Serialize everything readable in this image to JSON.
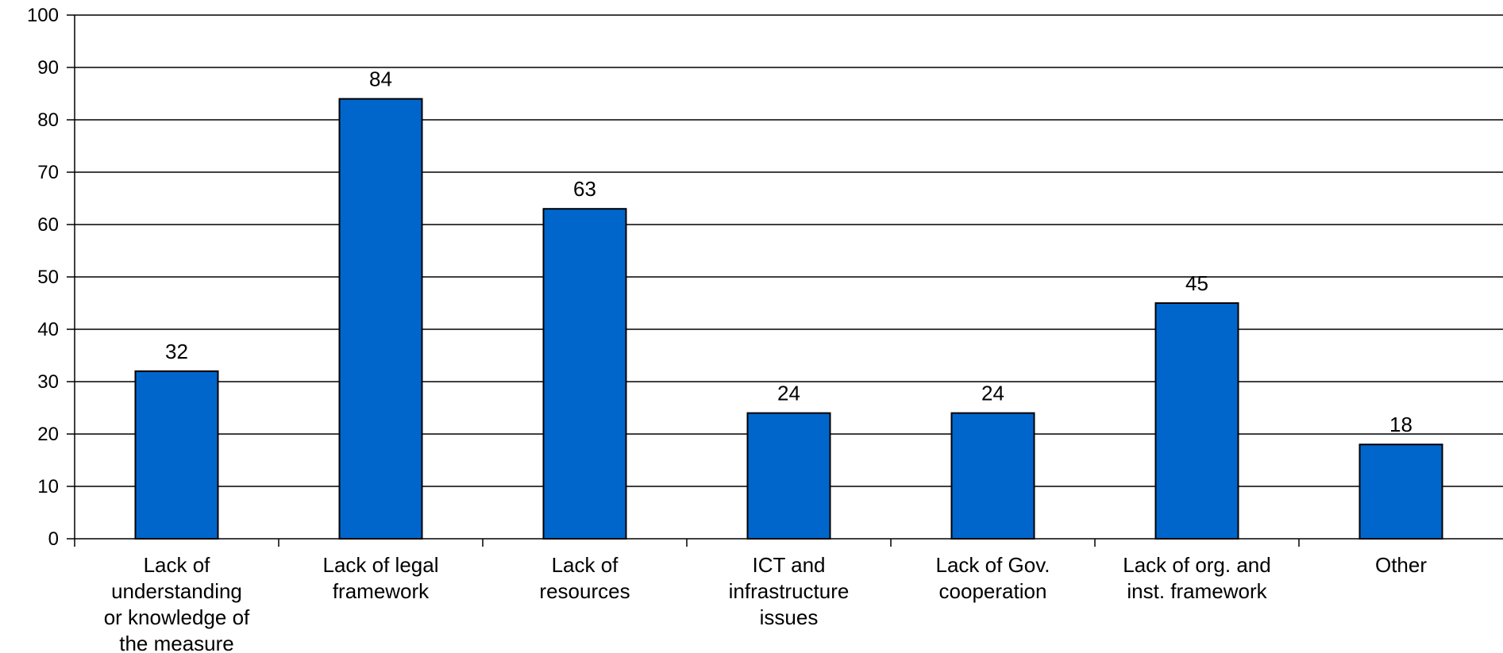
{
  "chart_data": {
    "type": "bar",
    "categories": [
      [
        "Lack of",
        "understanding",
        "or knowledge of",
        "the measure"
      ],
      [
        "Lack of legal",
        "framework"
      ],
      [
        "Lack of",
        "resources"
      ],
      [
        "ICT and",
        "infrastructure",
        "issues"
      ],
      [
        "Lack of Gov.",
        "cooperation"
      ],
      [
        "Lack of org. and",
        "inst. framework"
      ],
      [
        "Other"
      ]
    ],
    "values": [
      32,
      84,
      63,
      24,
      24,
      45,
      18
    ],
    "data_labels": [
      "32",
      "84",
      "63",
      "24",
      "24",
      "45",
      "18"
    ],
    "ylim": [
      0,
      100
    ],
    "yticks": [
      0,
      10,
      20,
      30,
      40,
      50,
      60,
      70,
      80,
      90,
      100
    ],
    "grid": true,
    "legend": "none",
    "bar_color": "#0066CC",
    "bar_edge_color": "#000000",
    "title": "",
    "xlabel": "",
    "ylabel": ""
  }
}
